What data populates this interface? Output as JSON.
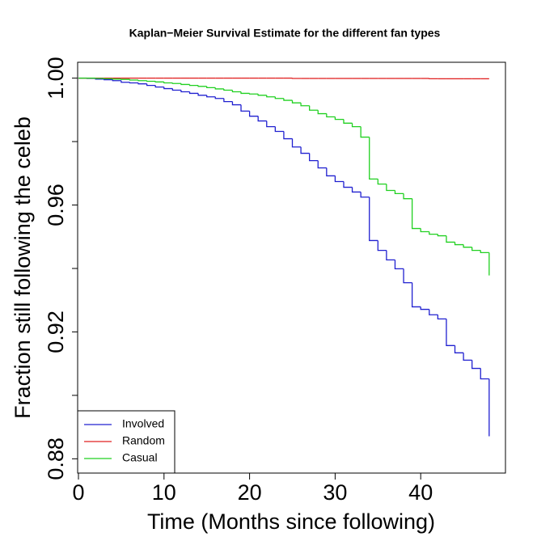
{
  "chart_data": {
    "type": "step",
    "title": "Kaplan−Meier Survival Estimate for the different fan types",
    "x_label": "Time (Months since following)",
    "y_label": "Fraction still following the celeb",
    "x": [
      0,
      1,
      2,
      3,
      4,
      5,
      6,
      7,
      8,
      9,
      10,
      11,
      12,
      13,
      14,
      15,
      16,
      17,
      18,
      19,
      20,
      21,
      22,
      23,
      24,
      25,
      26,
      27,
      28,
      29,
      30,
      31,
      32,
      33,
      34,
      35,
      36,
      37,
      38,
      39,
      40,
      41,
      42,
      43,
      44,
      45,
      46,
      47,
      48
    ],
    "series": [
      {
        "name": "Involved",
        "color": "#2020d0",
        "values": [
          1.0,
          0.9999,
          0.9997,
          0.9995,
          0.9992,
          0.9987,
          0.9985,
          0.9982,
          0.9977,
          0.9972,
          0.9967,
          0.9962,
          0.9957,
          0.9952,
          0.9946,
          0.9941,
          0.9936,
          0.9926,
          0.9916,
          0.9896,
          0.988,
          0.9865,
          0.9847,
          0.9832,
          0.9809,
          0.9783,
          0.9763,
          0.974,
          0.9717,
          0.9692,
          0.9674,
          0.9656,
          0.9641,
          0.9625,
          0.9488,
          0.9457,
          0.9427,
          0.9399,
          0.9355,
          0.9279,
          0.9271,
          0.9254,
          0.9241,
          0.9157,
          0.9134,
          0.9111,
          0.9085,
          0.9052,
          0.8871
        ]
      },
      {
        "name": "Random",
        "color": "#e02020",
        "values": [
          1,
          1,
          1,
          1,
          1,
          1,
          1,
          1,
          1,
          1,
          1,
          1,
          1,
          1,
          1,
          1,
          1,
          1,
          1,
          1,
          1,
          1,
          1,
          1,
          1,
          0.9999,
          0.9999,
          0.9999,
          0.9999,
          0.9999,
          0.9999,
          0.9999,
          0.9999,
          0.9999,
          0.9999,
          0.9999,
          0.9999,
          0.9999,
          0.9999,
          0.9999,
          0.9999,
          0.9998,
          0.9998,
          0.9998,
          0.9998,
          0.9998,
          0.9998,
          0.9998,
          0.9998
        ]
      },
      {
        "name": "Casual",
        "color": "#20d020",
        "values": [
          1,
          1,
          0.9999,
          0.9998,
          0.9997,
          0.9996,
          0.9994,
          0.9992,
          0.999,
          0.9988,
          0.9985,
          0.9983,
          0.998,
          0.9977,
          0.9974,
          0.997,
          0.9966,
          0.9962,
          0.9957,
          0.9952,
          0.995,
          0.9946,
          0.9941,
          0.9936,
          0.993,
          0.9922,
          0.9913,
          0.9899,
          0.9888,
          0.9878,
          0.987,
          0.9858,
          0.9847,
          0.9814,
          0.9682,
          0.9666,
          0.9646,
          0.9636,
          0.962,
          0.9526,
          0.9516,
          0.9508,
          0.9503,
          0.9483,
          0.9475,
          0.9467,
          0.9457,
          0.945,
          0.9378
        ]
      }
    ],
    "xlim": [
      0,
      50
    ],
    "xticks": [
      0,
      10,
      20,
      30,
      40
    ],
    "ylim": [
      0.8755,
      1.005
    ],
    "yticks": [
      {
        "value": 0.88,
        "label": "0.88"
      },
      {
        "value": 0.92,
        "label": "0.92"
      },
      {
        "value": 0.96,
        "label": "0.96"
      },
      {
        "value": 1,
        "label": "1.00"
      }
    ],
    "yminorticks": [
      0.9,
      0.94,
      0.98
    ],
    "legend": "bottom-left"
  }
}
